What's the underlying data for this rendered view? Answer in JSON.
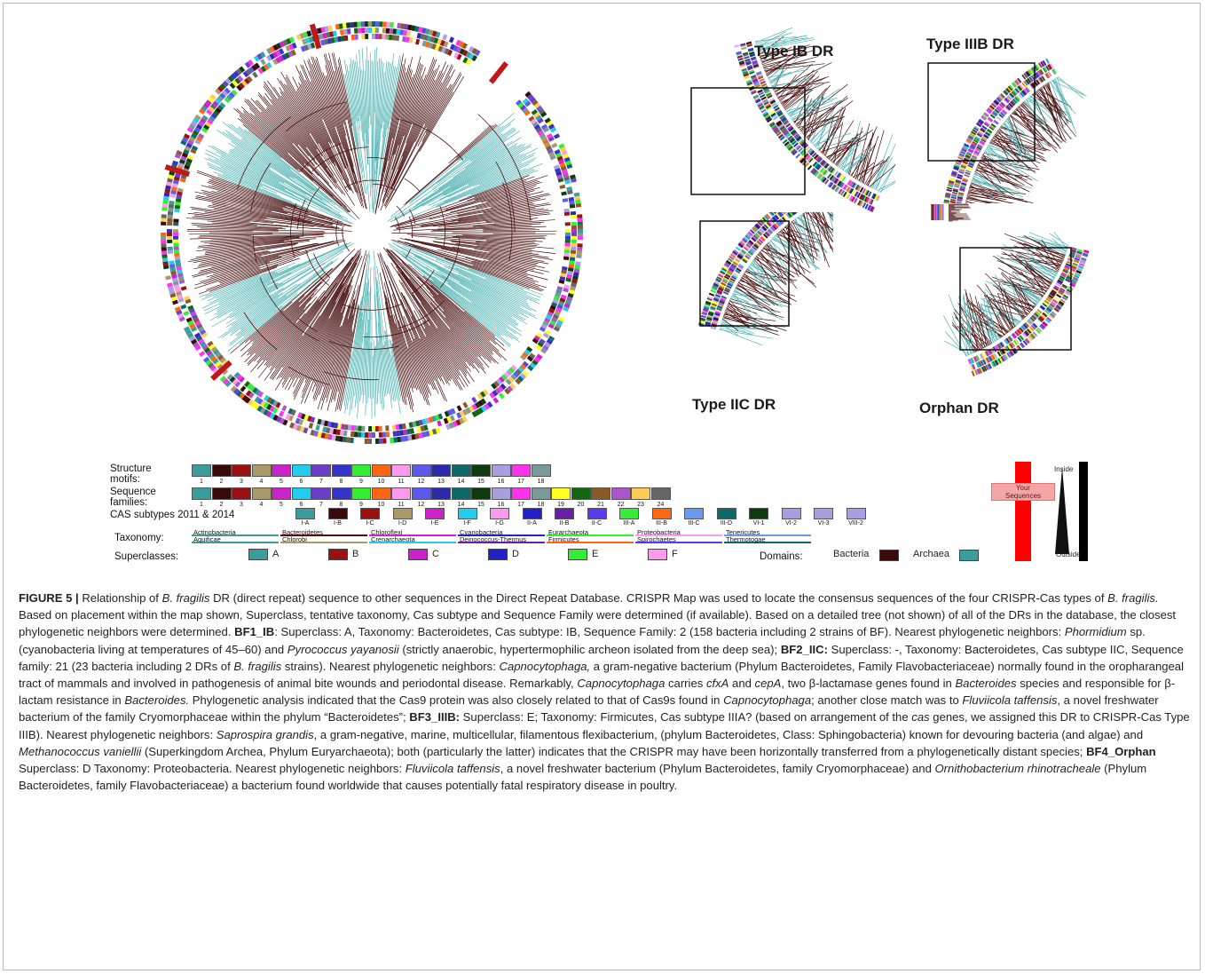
{
  "figure": {
    "panels": {
      "type_ib": "Type IB DR",
      "type_iiib": "Type IIIB DR",
      "type_iic": "Type IIC DR",
      "orphan": "Orphan DR"
    },
    "legend": {
      "structure_motifs_label": "Structure\nmotifs:",
      "structure_motifs_numbers": [
        "1",
        "2",
        "3",
        "4",
        "5",
        "6",
        "7",
        "8",
        "9",
        "10",
        "11",
        "12",
        "13",
        "14",
        "15",
        "16",
        "17",
        "18"
      ],
      "structure_motifs_colors": [
        "#3a9c9c",
        "#3a0a0a",
        "#9b1111",
        "#a89a6a",
        "#cc22cc",
        "#22ccee",
        "#6b3fc9",
        "#3333cc",
        "#33ee33",
        "#ff6611",
        "#ff99ee",
        "#5a5aee",
        "#2a2aaa",
        "#0e6a6a",
        "#0e3a0e",
        "#a99ee0",
        "#ff33ee",
        "#7a9a9a"
      ],
      "sequence_families_label": "Sequence\nfamilies:",
      "sequence_families_numbers": [
        "1",
        "2",
        "3",
        "4",
        "5",
        "6",
        "7",
        "8",
        "9",
        "10",
        "11",
        "12",
        "13",
        "14",
        "15",
        "16",
        "17",
        "18",
        "19",
        "20",
        "21",
        "22",
        "23",
        "24"
      ],
      "sequence_families_colors": [
        "#3a9c9c",
        "#3a0a0a",
        "#9b1111",
        "#a89a6a",
        "#cc22cc",
        "#22ccee",
        "#6b3fc9",
        "#3333cc",
        "#33ee33",
        "#ff6611",
        "#ff99ee",
        "#5a5aee",
        "#2a2aaa",
        "#0e6a6a",
        "#0e3a0e",
        "#a99ee0",
        "#ff33ee",
        "#7a9a9a",
        "#ffff22",
        "#116611",
        "#8a5a2a",
        "#aa55cc",
        "#ffcc55",
        "#666666"
      ],
      "cas_label": "CAS subtypes 2011 & 2014",
      "cas_subtypes": [
        "I-A",
        "I-B",
        "I-C",
        "I-D",
        "I-E",
        "I-F",
        "I-G",
        "II-A",
        "II-B",
        "II-C",
        "III-A",
        "III-B",
        "III-C",
        "III-D",
        "VI-1",
        "VI-2",
        "VI-3",
        "VIII-2"
      ],
      "cas_colors": [
        "#3a9c9c",
        "#3a0a0a",
        "#9b1111",
        "#a89a6a",
        "#cc22cc",
        "#22ccee",
        "#ff99ee",
        "#2222cc",
        "#6b1fa9",
        "#5a3aee",
        "#33ee33",
        "#ff6611",
        "#6a9aee",
        "#0e6a6a",
        "#0e3a0e",
        "#a99ee0",
        "#a99ee0",
        "#a99ee0"
      ],
      "taxonomy_label": "Taxonomy:",
      "taxonomy_items": [
        {
          "name": "Actinobacteria",
          "color": "#3a9c9c"
        },
        {
          "name": "Aquificae",
          "color": "#3a9c9c"
        },
        {
          "name": "Bacteroidetes",
          "color": "#5a0a0a"
        },
        {
          "name": "Chlorobi",
          "color": "#a89a6a"
        },
        {
          "name": "Chloroflexi",
          "color": "#cc22cc"
        },
        {
          "name": "Crenarchaeota",
          "color": "#22ccee"
        },
        {
          "name": "Cyanobacteria",
          "color": "#2222cc"
        },
        {
          "name": "Deinococcus-Thermus",
          "color": "#6b1fa9"
        },
        {
          "name": "Eurarchaeota",
          "color": "#33ee33"
        },
        {
          "name": "Firmicutes",
          "color": "#ff6611"
        },
        {
          "name": "Proteobacteria",
          "color": "#ff99ee"
        },
        {
          "name": "Spirochaetes",
          "color": "#5a3aee"
        },
        {
          "name": "Tenericutes",
          "color": "#6a9aee"
        },
        {
          "name": "Thermotogae",
          "color": "#0e6a6a"
        }
      ],
      "superclasses_label": "Superclasses:",
      "superclasses": [
        {
          "name": "A",
          "color": "#3a9c9c"
        },
        {
          "name": "B",
          "color": "#9b1111"
        },
        {
          "name": "C",
          "color": "#cc22cc"
        },
        {
          "name": "D",
          "color": "#2222cc"
        },
        {
          "name": "E",
          "color": "#33ee33"
        },
        {
          "name": "F",
          "color": "#ff99ee"
        }
      ],
      "domains_label": "Domains:",
      "domains": [
        {
          "name": "Bacteria",
          "color": "#3a0a0a"
        },
        {
          "name": "Archaea",
          "color": "#3a9c9c"
        }
      ],
      "inside_label": "Inside",
      "outside_label": "Outside",
      "your_sequences_label": "Your\nSequences"
    }
  },
  "caption": {
    "figure_label": "FIGURE 5 |",
    "segments": [
      {
        "t": "n",
        "v": " Relationship of "
      },
      {
        "t": "i",
        "v": "B. fragilis"
      },
      {
        "t": "n",
        "v": " DR (direct repeat) sequence to other sequences in the Direct Repeat Database. CRISPR Map was used to locate the consensus sequences of the four CRISPR-Cas types of "
      },
      {
        "t": "i",
        "v": "B. fragilis."
      },
      {
        "t": "n",
        "v": " Based on placement within the map shown, Superclass, tentative taxonomy, Cas subtype and Sequence Family were determined (if available). Based on a detailed tree (not shown) of all of the DRs in the database, the closest phylogenetic neighbors were determined. "
      },
      {
        "t": "b",
        "v": "BF1_IB"
      },
      {
        "t": "n",
        "v": ": Superclass: A, Taxonomy: Bacteroidetes, Cas subtype: IB, Sequence Family: 2 (158 bacteria including 2 strains of BF). Nearest phylogenetic neighbors: "
      },
      {
        "t": "i",
        "v": "Phormidium"
      },
      {
        "t": "n",
        "v": " sp. (cyanobacteria living at temperatures of 45–60) and "
      },
      {
        "t": "i",
        "v": "Pyrococcus yayanosii"
      },
      {
        "t": "n",
        "v": " (strictly anaerobic, hypertermophilic archeon isolated from the deep sea); "
      },
      {
        "t": "b",
        "v": "BF2_IIC:"
      },
      {
        "t": "n",
        "v": " Superclass: -, Taxonomy: Bacteroidetes, Cas subtype IIC, Sequence family: 21 (23 bacteria including 2 DRs of "
      },
      {
        "t": "i",
        "v": "B. fragilis"
      },
      {
        "t": "n",
        "v": " strains). Nearest phylogenetic neighbors: "
      },
      {
        "t": "i",
        "v": "Capnocytophaga,"
      },
      {
        "t": "n",
        "v": " a gram-negative bacterium (Phylum Bacteroidetes, Family Flavobacteriaceae) normally found in the oropharangeal tract of mammals and involved in pathogenesis of animal bite wounds and periodontal disease. Remarkably, "
      },
      {
        "t": "i",
        "v": "Capnocytophaga"
      },
      {
        "t": "n",
        "v": " carries "
      },
      {
        "t": "i",
        "v": "cfxA"
      },
      {
        "t": "n",
        "v": " and "
      },
      {
        "t": "i",
        "v": "cepA"
      },
      {
        "t": "n",
        "v": ", two β-lactamase genes found in "
      },
      {
        "t": "i",
        "v": "Bacteroides"
      },
      {
        "t": "n",
        "v": " species and responsible for β-lactam resistance in "
      },
      {
        "t": "i",
        "v": "Bacteroides."
      },
      {
        "t": "n",
        "v": " Phylogenetic analysis indicated that the Cas9 protein was also closely related to that of Cas9s found in "
      },
      {
        "t": "i",
        "v": "Capnocytophaga"
      },
      {
        "t": "n",
        "v": "; another close match was to "
      },
      {
        "t": "i",
        "v": "Fluviicola taffensis"
      },
      {
        "t": "n",
        "v": ", a novel freshwater bacterium of the family Cryomorphaceae within the phylum “Bacteroidetes”; "
      },
      {
        "t": "b",
        "v": "BF3_IIIB:"
      },
      {
        "t": "n",
        "v": " Superclass: E; Taxonomy: Firmicutes, Cas subtype IIIA? (based on arrangement of the "
      },
      {
        "t": "i",
        "v": "cas"
      },
      {
        "t": "n",
        "v": " genes, we assigned this DR to CRISPR-Cas Type IIIB). Nearest phylogenetic neighbors: "
      },
      {
        "t": "i",
        "v": "Saprospira grandis"
      },
      {
        "t": "n",
        "v": ", a gram-negative, marine, multicellular, filamentous flexibacterium, (phylum Bacteroidetes, Class: Sphingobacteria) known for devouring bacteria (and algae) and "
      },
      {
        "t": "i",
        "v": "Methanococcus vaniellii"
      },
      {
        "t": "n",
        "v": " (Superkingdom Archea, Phylum Euryarchaeota); both (particularly the latter) indicates that the CRISPR may have been horizontally transferred from a phylogenetically distant species; "
      },
      {
        "t": "b",
        "v": "BF4_Orphan"
      },
      {
        "t": "n",
        "v": " Superclass: D Taxonomy: Proteobacteria. Nearest phylogenetic neighbors: "
      },
      {
        "t": "i",
        "v": "Fluviicola taffensis"
      },
      {
        "t": "n",
        "v": ", a novel freshwater bacterium (Phylum Bacteroidetes, family Cryomorphaceae) and "
      },
      {
        "t": "i",
        "v": "Ornithobacterium rhinotracheale"
      },
      {
        "t": "n",
        "v": " (Phylum Bacteroidetes, family Flavobacteriaceae) a bacterium found worldwide that causes potentially fatal respiratory disease in poultry."
      }
    ]
  }
}
